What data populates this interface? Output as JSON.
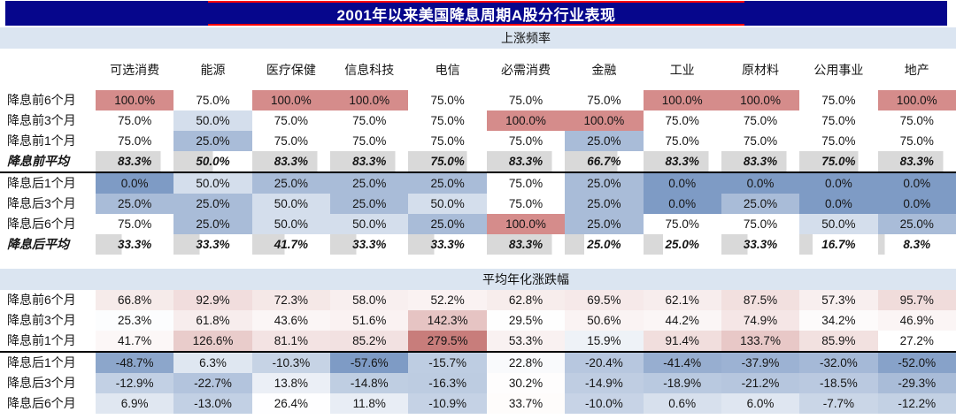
{
  "title": "2001年以来美国降息周期A股分行业表现",
  "columns": [
    "可选消费",
    "能源",
    "医疗保健",
    "信息科技",
    "电信",
    "必需消费",
    "金融",
    "工业",
    "原材料",
    "公用事业",
    "地产"
  ],
  "colors": {
    "title_bar_bg": "#06068C",
    "title_text": "#FFFFFF",
    "title_rule_red": "#FF0000",
    "section_band_bg": "#DBE5F1",
    "data_bar_gray": "#D9D9D9",
    "scale_low_blue": "#7E9BC5",
    "scale_mid_white": "#FFFFFF",
    "scale_high_red_table1": "#D58C8B",
    "scale_high_red_table2": "#C87D7B",
    "separator_black": "#000000"
  },
  "chart_data": [
    {
      "type": "table",
      "name": "rise-frequency",
      "title": "上涨频率",
      "value_format": "percent_1dp",
      "legend_position": "none",
      "scale": {
        "min": 0,
        "mid": 75,
        "max": 100,
        "min_color": "#7E9BC5",
        "mid_color": "#FFFFFF",
        "max_color": "#D58C8B"
      },
      "categories": [
        "可选消费",
        "能源",
        "医疗保健",
        "信息科技",
        "电信",
        "必需消费",
        "金融",
        "工业",
        "原材料",
        "公用事业",
        "地产"
      ],
      "rows": [
        {
          "label": "降息前6个月",
          "style": "scale",
          "values": [
            100.0,
            75.0,
            100.0,
            100.0,
            75.0,
            75.0,
            75.0,
            100.0,
            100.0,
            75.0,
            100.0
          ]
        },
        {
          "label": "降息前3个月",
          "style": "scale",
          "values": [
            75.0,
            50.0,
            75.0,
            75.0,
            75.0,
            100.0,
            100.0,
            75.0,
            75.0,
            75.0,
            75.0
          ]
        },
        {
          "label": "降息前1个月",
          "style": "scale",
          "values": [
            75.0,
            25.0,
            75.0,
            75.0,
            75.0,
            75.0,
            25.0,
            75.0,
            75.0,
            75.0,
            75.0
          ]
        },
        {
          "label": "降息前平均",
          "style": "bar",
          "separator_below": true,
          "values": [
            83.3,
            50.0,
            83.3,
            83.3,
            75.0,
            83.3,
            66.7,
            83.3,
            83.3,
            75.0,
            83.3
          ]
        },
        {
          "label": "降息后1个月",
          "style": "scale",
          "values": [
            0.0,
            50.0,
            25.0,
            25.0,
            25.0,
            75.0,
            25.0,
            0.0,
            0.0,
            0.0,
            0.0
          ]
        },
        {
          "label": "降息后3个月",
          "style": "scale",
          "values": [
            25.0,
            25.0,
            50.0,
            25.0,
            50.0,
            75.0,
            25.0,
            0.0,
            25.0,
            0.0,
            0.0
          ]
        },
        {
          "label": "降息后6个月",
          "style": "scale",
          "values": [
            75.0,
            25.0,
            50.0,
            50.0,
            25.0,
            100.0,
            25.0,
            75.0,
            75.0,
            50.0,
            25.0
          ]
        },
        {
          "label": "降息后平均",
          "style": "bar",
          "values": [
            33.3,
            33.3,
            41.7,
            33.3,
            33.3,
            83.3,
            25.0,
            25.0,
            33.3,
            16.7,
            8.3
          ]
        }
      ]
    },
    {
      "type": "table",
      "name": "avg-annualized-change",
      "title": "平均年化涨跌幅",
      "value_format": "percent_1dp",
      "legend_position": "none",
      "scale": {
        "min": -57.6,
        "mid": 27,
        "max": 279.5,
        "min_color": "#7E9BC5",
        "mid_color": "#FFFFFF",
        "max_color": "#C87D7B"
      },
      "categories": [
        "可选消费",
        "能源",
        "医疗保健",
        "信息科技",
        "电信",
        "必需消费",
        "金融",
        "工业",
        "原材料",
        "公用事业",
        "地产"
      ],
      "rows": [
        {
          "label": "降息前6个月",
          "style": "scale",
          "values": [
            66.8,
            92.9,
            72.3,
            58.0,
            52.2,
            62.8,
            69.5,
            62.1,
            87.5,
            57.3,
            95.7
          ]
        },
        {
          "label": "降息前3个月",
          "style": "scale",
          "values": [
            25.3,
            61.8,
            43.6,
            51.6,
            142.3,
            29.5,
            50.6,
            44.2,
            74.9,
            34.2,
            46.9
          ]
        },
        {
          "label": "降息前1个月",
          "style": "scale",
          "separator_below": true,
          "values": [
            41.7,
            126.6,
            81.1,
            85.2,
            279.5,
            53.3,
            15.9,
            91.4,
            133.7,
            85.9,
            27.2
          ]
        },
        {
          "label": "降息后1个月",
          "style": "scale",
          "values": [
            -48.7,
            6.3,
            -10.3,
            -57.6,
            -15.7,
            22.8,
            -20.4,
            -41.4,
            -37.9,
            -32.0,
            -52.0
          ]
        },
        {
          "label": "降息后3个月",
          "style": "scale",
          "values": [
            -12.9,
            -22.7,
            13.8,
            -14.8,
            -16.3,
            30.2,
            -14.9,
            -18.9,
            -21.2,
            -18.5,
            -29.3
          ]
        },
        {
          "label": "降息后6个月",
          "style": "scale",
          "values": [
            6.9,
            -13.0,
            26.4,
            11.8,
            -10.9,
            33.7,
            -10.0,
            0.6,
            6.0,
            -7.7,
            -12.2
          ]
        }
      ]
    }
  ]
}
